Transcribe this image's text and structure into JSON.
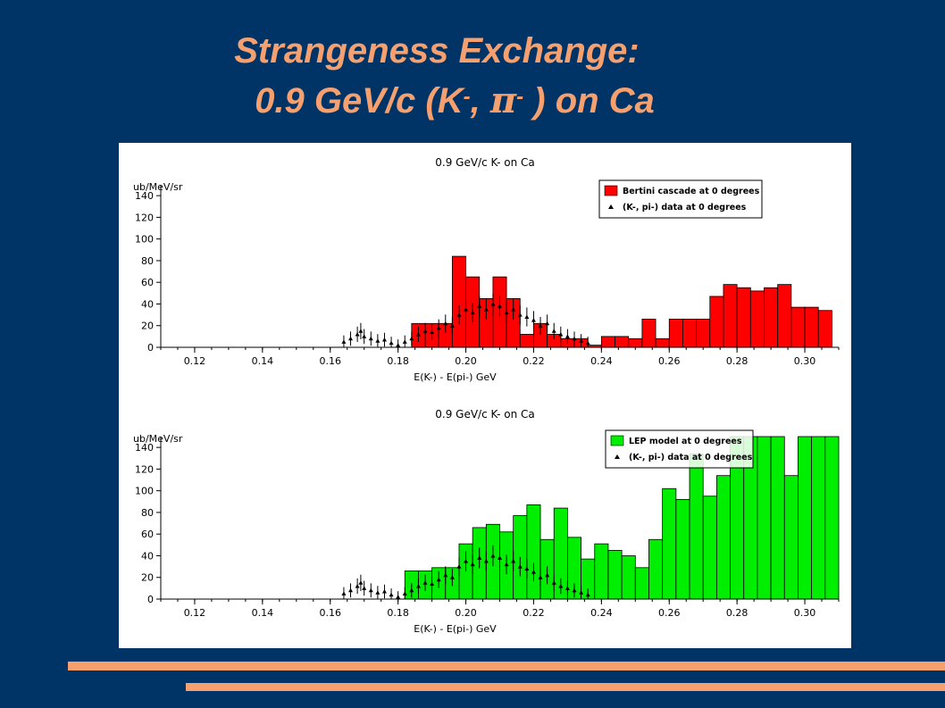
{
  "slide": {
    "title_line1": "Strangeness Exchange:",
    "title_prefix": "0.9 GeV/c  (K",
    "title_sup": "-",
    "title_comma": ", ",
    "title_pi": "π",
    "title_pi_sup": "-",
    "title_suffix": " ) on Ca",
    "title_color": "#f5a06e",
    "background": "#003366"
  },
  "chart_data": [
    {
      "type": "bar",
      "title": "0.9 GeV/c K- on Ca",
      "xlabel": "E(K-) - E(pi-) GeV",
      "ylabel": "ub/MeV/sr",
      "xlim": [
        0.11,
        0.31
      ],
      "ylim": [
        0,
        150
      ],
      "xticks": [
        "0.12",
        "0.14",
        "0.16",
        "0.18",
        "0.20",
        "0.22",
        "0.24",
        "0.26",
        "0.28",
        "0.30"
      ],
      "yticks": [
        "0",
        "20",
        "40",
        "60",
        "80",
        "100",
        "120",
        "140"
      ],
      "legend_position": "top-right",
      "series": [
        {
          "name": "Bertini cascade at 0 degrees",
          "color": "#ff0000",
          "bin_width": 0.004,
          "x": [
            0.186,
            0.19,
            0.194,
            0.198,
            0.202,
            0.206,
            0.21,
            0.214,
            0.218,
            0.222,
            0.226,
            0.23,
            0.234,
            0.238,
            0.242,
            0.246,
            0.25,
            0.254,
            0.258,
            0.262,
            0.266,
            0.27,
            0.274,
            0.278,
            0.282,
            0.286,
            0.29,
            0.294,
            0.298,
            0.302,
            0.306
          ],
          "values": [
            22,
            22,
            22,
            84,
            65,
            45,
            65,
            45,
            12,
            22,
            12,
            8,
            8,
            2,
            10,
            10,
            8,
            26,
            8,
            26,
            26,
            26,
            47,
            58,
            55,
            52,
            55,
            58,
            37,
            37,
            34
          ]
        },
        {
          "name": "(K-, pi-) data at 0 degrees",
          "color": "#000000",
          "x": [
            0.164,
            0.166,
            0.168,
            0.169,
            0.17,
            0.172,
            0.174,
            0.176,
            0.178,
            0.18,
            0.182,
            0.184,
            0.186,
            0.188,
            0.19,
            0.192,
            0.194,
            0.196,
            0.198,
            0.2,
            0.202,
            0.204,
            0.206,
            0.208,
            0.21,
            0.212,
            0.214,
            0.216,
            0.218,
            0.22,
            0.222,
            0.224,
            0.226,
            0.228,
            0.23,
            0.232,
            0.234,
            0.236
          ],
          "values": [
            5,
            8,
            12,
            15,
            10,
            8,
            6,
            7,
            4,
            2,
            5,
            8,
            12,
            15,
            14,
            18,
            22,
            20,
            30,
            35,
            32,
            38,
            35,
            40,
            38,
            32,
            35,
            30,
            28,
            25,
            20,
            22,
            15,
            12,
            10,
            8,
            6,
            4
          ]
        }
      ]
    },
    {
      "type": "bar",
      "title": "0.9 GeV/c K- on Ca",
      "xlabel": "E(K-) - E(pi-) GeV",
      "ylabel": "ub/MeV/sr",
      "xlim": [
        0.11,
        0.31
      ],
      "ylim": [
        0,
        150
      ],
      "xticks": [
        "0.12",
        "0.14",
        "0.16",
        "0.18",
        "0.20",
        "0.22",
        "0.24",
        "0.26",
        "0.28",
        "0.30"
      ],
      "yticks": [
        "0",
        "20",
        "40",
        "60",
        "80",
        "100",
        "120",
        "140"
      ],
      "legend_position": "top-right",
      "series": [
        {
          "name": "LEP model at 0 degrees",
          "color": "#00ee00",
          "bin_width": 0.004,
          "x": [
            0.184,
            0.188,
            0.192,
            0.196,
            0.2,
            0.204,
            0.208,
            0.212,
            0.216,
            0.22,
            0.224,
            0.228,
            0.232,
            0.236,
            0.24,
            0.244,
            0.248,
            0.252,
            0.256,
            0.26,
            0.264,
            0.268,
            0.272,
            0.276,
            0.28,
            0.284,
            0.288,
            0.292,
            0.296,
            0.3,
            0.304,
            0.308
          ],
          "values": [
            26,
            26,
            29,
            29,
            51,
            66,
            69,
            62,
            77,
            87,
            55,
            84,
            57,
            37,
            51,
            45,
            40,
            29,
            55,
            102,
            92,
            134,
            95,
            114,
            150,
            150,
            150,
            150,
            114,
            150,
            150,
            150
          ]
        },
        {
          "name": "(K-, pi-) data at 0 degrees",
          "color": "#000000",
          "x": [
            0.164,
            0.166,
            0.168,
            0.169,
            0.17,
            0.172,
            0.174,
            0.176,
            0.178,
            0.18,
            0.182,
            0.184,
            0.186,
            0.188,
            0.19,
            0.192,
            0.194,
            0.196,
            0.198,
            0.2,
            0.202,
            0.204,
            0.206,
            0.208,
            0.21,
            0.212,
            0.214,
            0.216,
            0.218,
            0.22,
            0.222,
            0.224,
            0.226,
            0.228,
            0.23,
            0.232,
            0.234,
            0.236
          ],
          "values": [
            5,
            8,
            12,
            15,
            10,
            8,
            6,
            7,
            4,
            2,
            5,
            8,
            12,
            15,
            14,
            18,
            22,
            20,
            30,
            35,
            32,
            38,
            35,
            40,
            38,
            32,
            35,
            30,
            28,
            25,
            20,
            22,
            15,
            12,
            10,
            8,
            6,
            4
          ]
        }
      ]
    }
  ],
  "decor": {
    "stripe_color": "#f5a06e"
  }
}
